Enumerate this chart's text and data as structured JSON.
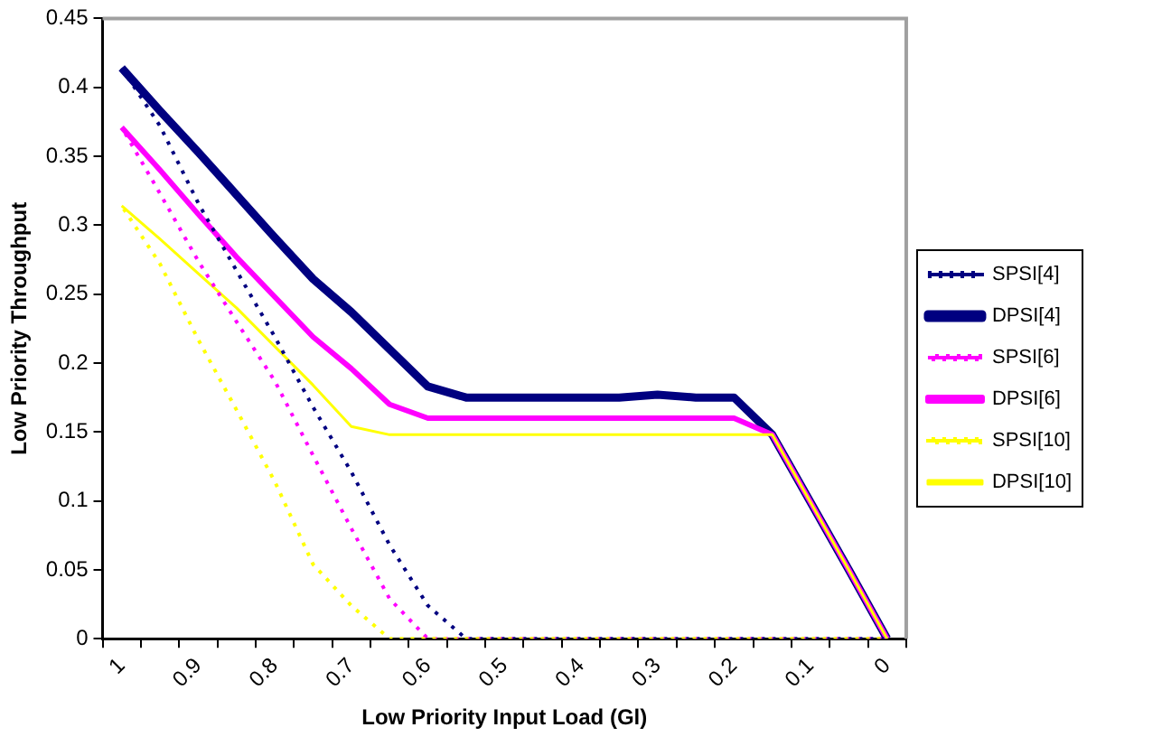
{
  "chart_data": {
    "type": "line",
    "xlabel": "Low Priority Input Load (Gl)",
    "ylabel": "Low Priority Throughput",
    "categories": [
      "1",
      null,
      "0.9",
      null,
      "0.8",
      null,
      "0.7",
      null,
      "0.6",
      null,
      "0.5",
      null,
      "0.4",
      null,
      "0.3",
      null,
      "0.2",
      null,
      "0.1",
      null,
      "0"
    ],
    "series": [
      {
        "name": "SPSI[4]",
        "color": "#000080",
        "line_style": "dotted",
        "values": [
          0.414,
          0.372,
          0.316,
          0.267,
          0.219,
          0.168,
          0.121,
          0.068,
          0.024,
          0,
          0,
          0,
          0,
          0,
          0,
          0,
          0,
          0,
          0,
          0,
          0
        ]
      },
      {
        "name": "DPSI[4]",
        "color": "#000080",
        "line_style": "solid",
        "values": [
          0.414,
          0.383,
          0.353,
          0.322,
          0.291,
          0.261,
          0.237,
          0.21,
          0.183,
          0.175,
          0.175,
          0.175,
          0.175,
          0.175,
          0.177,
          0.175,
          0.175,
          0.148,
          0.099,
          0.05,
          0
        ]
      },
      {
        "name": "SPSI[6]",
        "color": "#ff00ff",
        "line_style": "dotted",
        "values": [
          0.371,
          0.323,
          0.274,
          0.23,
          0.187,
          0.133,
          0.08,
          0.029,
          0,
          0,
          0,
          0,
          0,
          0,
          0,
          0,
          0,
          0,
          0,
          0,
          0
        ]
      },
      {
        "name": "DPSI[6]",
        "color": "#ff00ff",
        "line_style": "solid",
        "values": [
          0.371,
          0.34,
          0.308,
          0.277,
          0.248,
          0.219,
          0.196,
          0.17,
          0.16,
          0.16,
          0.16,
          0.16,
          0.16,
          0.16,
          0.16,
          0.16,
          0.16,
          0.148,
          0.099,
          0.05,
          0
        ]
      },
      {
        "name": "SPSI[10]",
        "color": "#ffff00",
        "line_style": "dotted",
        "values": [
          0.314,
          0.272,
          0.217,
          0.166,
          0.114,
          0.054,
          0.024,
          0,
          0,
          0,
          0,
          0,
          0,
          0,
          0,
          0,
          0,
          0,
          0,
          0,
          0
        ]
      },
      {
        "name": "DPSI[10]",
        "color": "#ffff00",
        "line_style": "solid",
        "values": [
          0.314,
          0.29,
          0.265,
          0.24,
          0.212,
          0.184,
          0.154,
          0.148,
          0.148,
          0.148,
          0.148,
          0.148,
          0.148,
          0.148,
          0.148,
          0.148,
          0.148,
          0.148,
          0.099,
          0.05,
          0
        ]
      }
    ],
    "ylim": [
      0,
      0.45
    ],
    "yticks": [
      0,
      0.05,
      0.1,
      0.15,
      0.2,
      0.25,
      0.3,
      0.35,
      0.4,
      0.45
    ],
    "grid": false,
    "legend": "right",
    "marker": "none"
  }
}
